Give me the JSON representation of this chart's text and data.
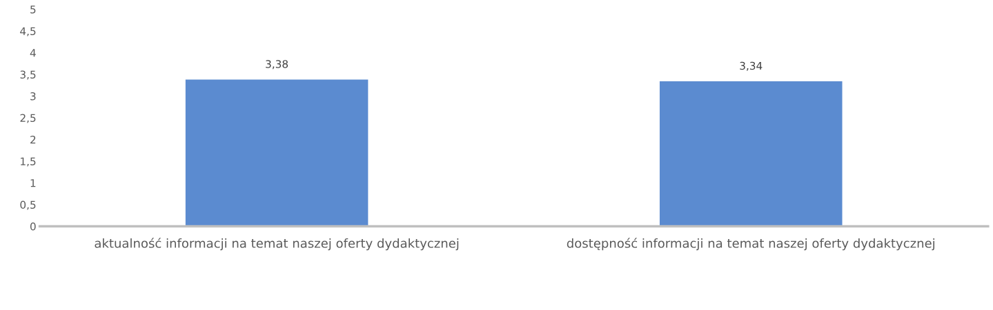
{
  "chart_data": {
    "type": "bar",
    "categories": [
      "aktualność informacji na temat naszej oferty dydaktycznej",
      "dostępność informacji na temat naszej oferty dydaktycznej"
    ],
    "values": [
      3.38,
      3.34
    ],
    "color": "#5b8bd0",
    "value_labels": [
      "3,38",
      "3,34"
    ],
    "ylim": [
      0,
      5
    ],
    "yticks": [
      0,
      {
        "value": 0.5,
        "label": "0,5"
      },
      1,
      {
        "value": 1.5,
        "label": "1,5"
      },
      2,
      {
        "value": 2.5,
        "label": "2,5"
      },
      3,
      {
        "value": 3.5,
        "label": "3,5"
      },
      4,
      {
        "value": 4.5,
        "label": "4,5"
      },
      5
    ],
    "grid": false,
    "legend": false
  }
}
